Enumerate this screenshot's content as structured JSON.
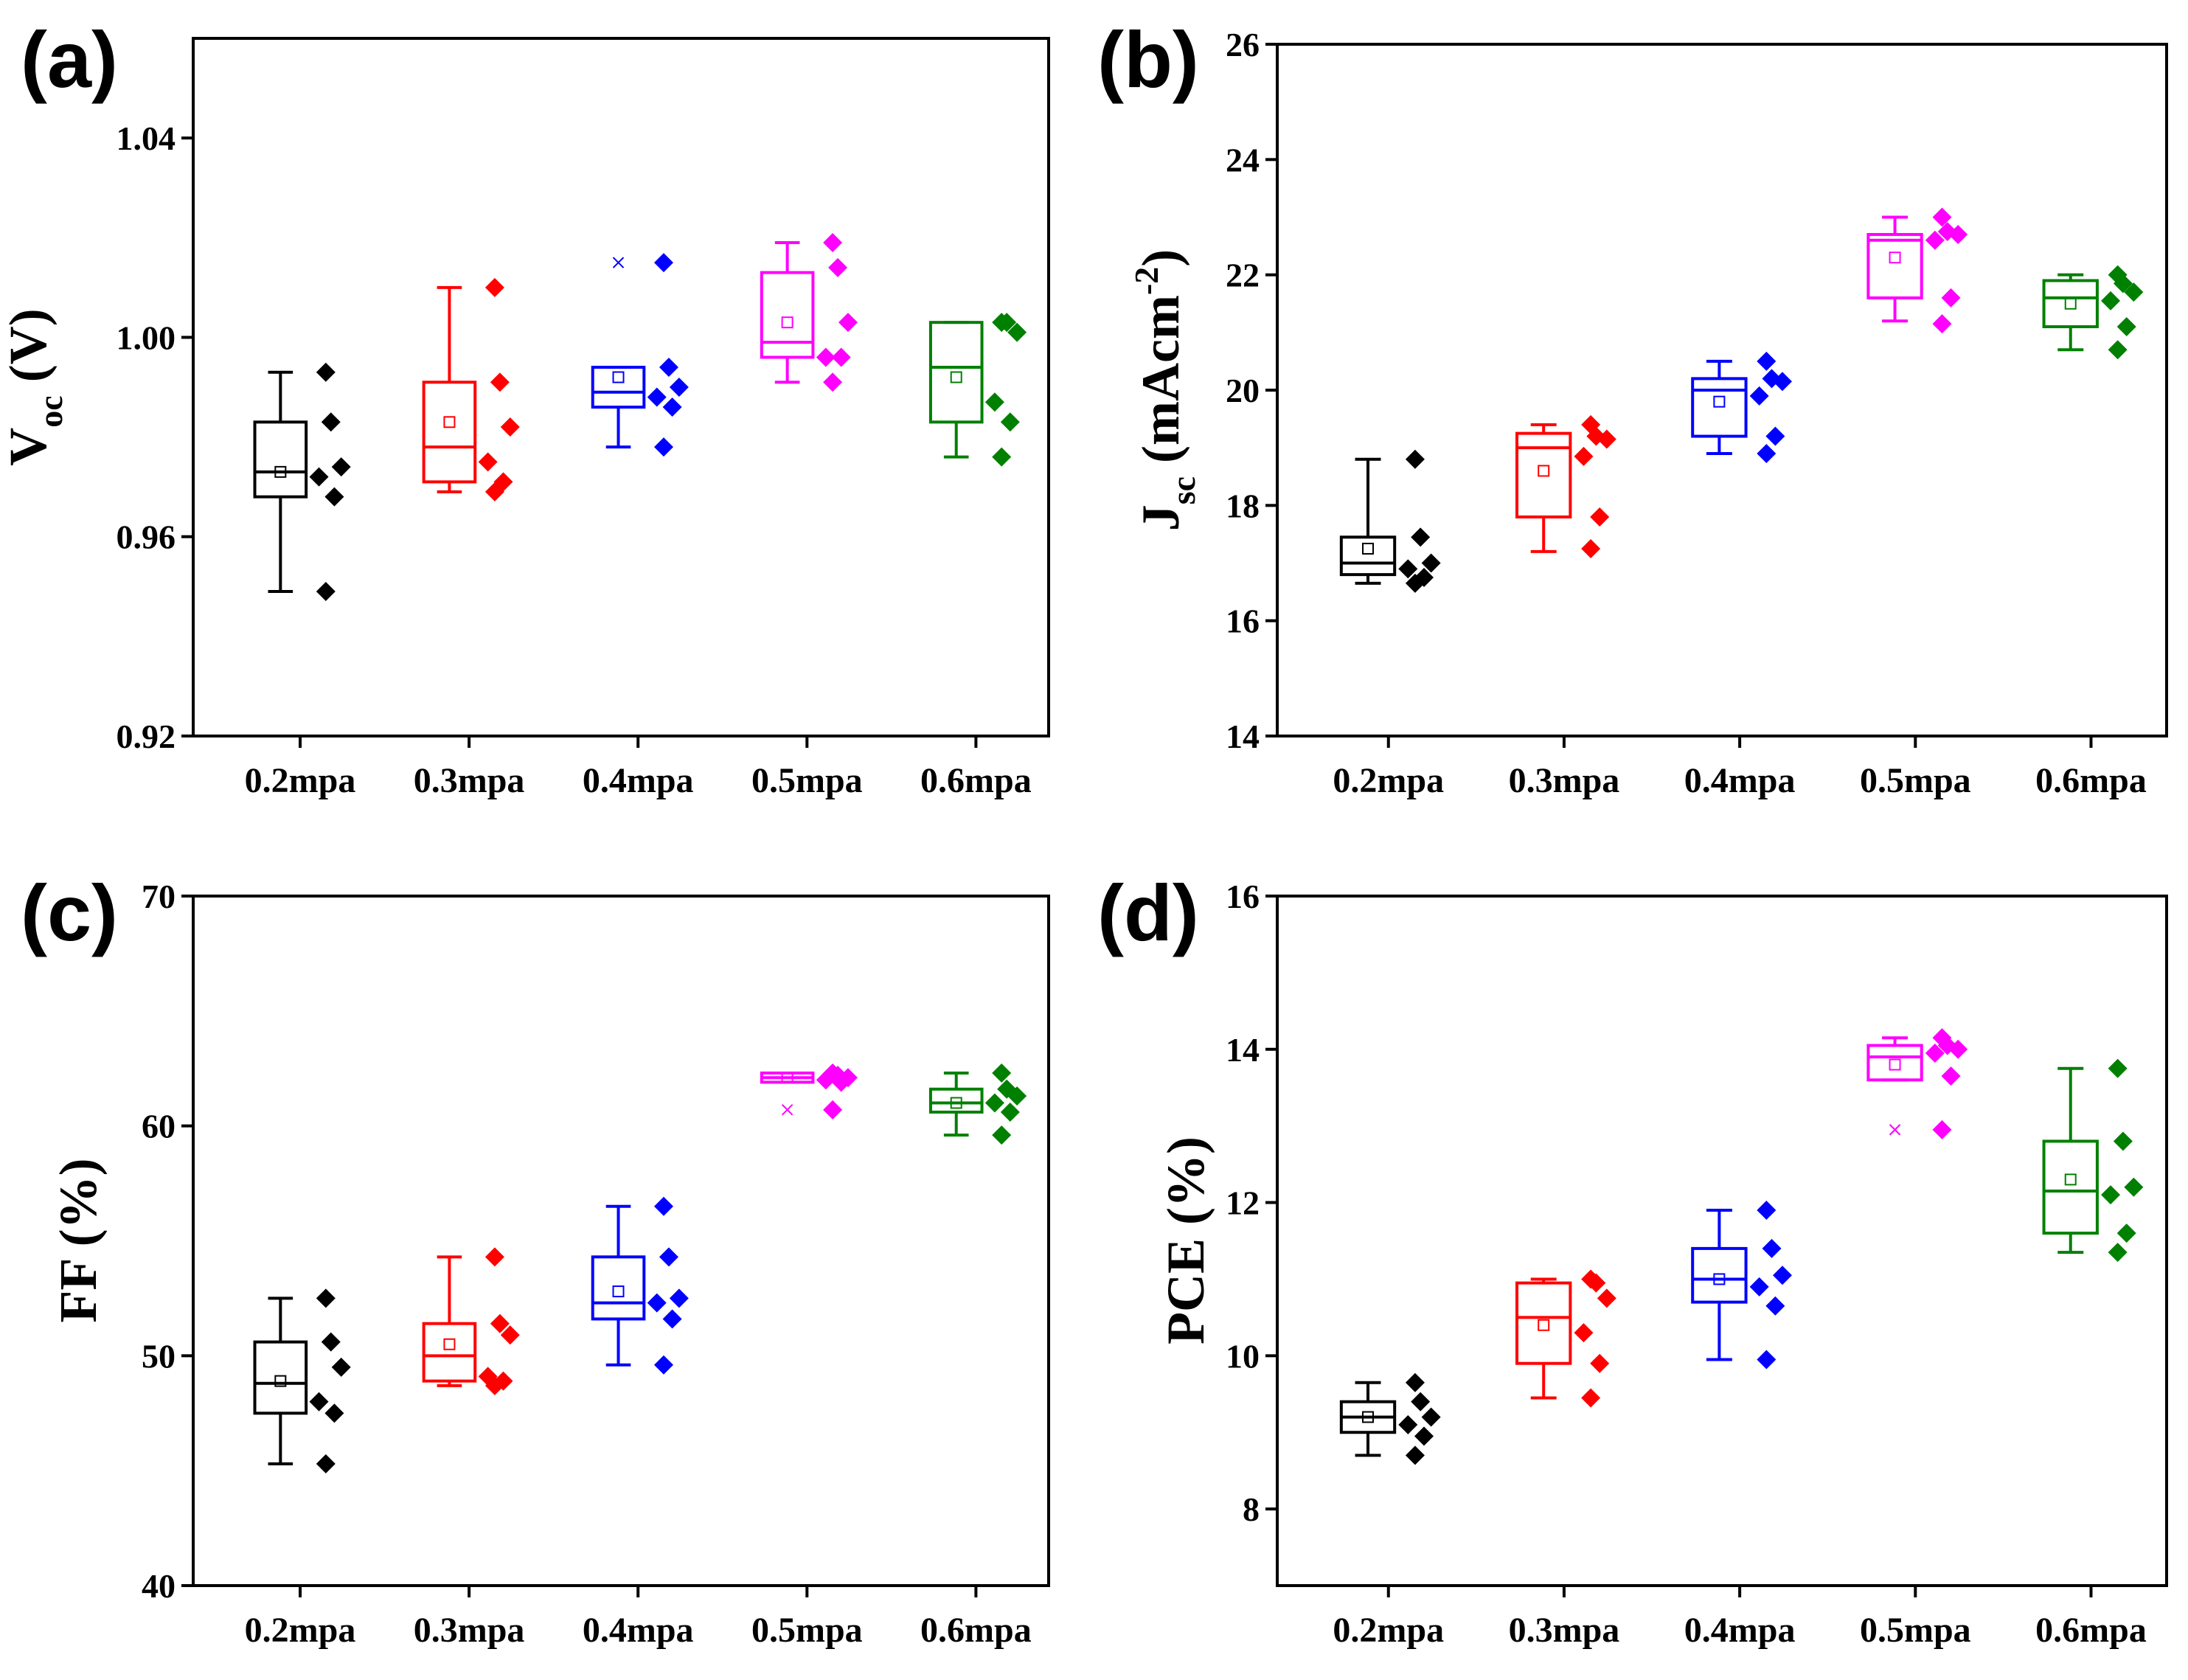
{
  "figure": {
    "categories": [
      "0.2mpa",
      "0.3mpa",
      "0.4mpa",
      "0.5mpa",
      "0.6mpa"
    ],
    "colors": [
      "#000000",
      "#ff0000",
      "#0000ff",
      "#ff00ff",
      "#008000"
    ]
  },
  "chart_data": [
    {
      "panel": "(a)",
      "type": "box",
      "title": "",
      "xlabel": "",
      "ylabel": {
        "main": "V",
        "sub": "oc",
        "rest": " (V)"
      },
      "ylim": [
        0.92,
        1.06
      ],
      "yticks": [
        0.92,
        0.96,
        1.0,
        1.04
      ],
      "ytick_labels": [
        "0.92",
        "0.96",
        "1.00",
        "1.04"
      ],
      "categories": [
        "0.2mpa",
        "0.3mpa",
        "0.4mpa",
        "0.5mpa",
        "0.6mpa"
      ],
      "boxes": [
        {
          "q1": 0.968,
          "median": 0.973,
          "q3": 0.983,
          "whisker_low": 0.949,
          "whisker_high": 0.993,
          "mean": 0.973,
          "outliers": []
        },
        {
          "q1": 0.971,
          "median": 0.978,
          "q3": 0.991,
          "whisker_low": 0.969,
          "whisker_high": 1.01,
          "mean": 0.983,
          "outliers": []
        },
        {
          "q1": 0.986,
          "median": 0.989,
          "q3": 0.994,
          "whisker_low": 0.978,
          "whisker_high": 0.994,
          "mean": 0.992,
          "outliers": [
            1.015
          ]
        },
        {
          "q1": 0.996,
          "median": 0.999,
          "q3": 1.013,
          "whisker_low": 0.991,
          "whisker_high": 1.019,
          "mean": 1.003,
          "outliers": []
        },
        {
          "q1": 0.983,
          "median": 0.994,
          "q3": 1.003,
          "whisker_low": 0.976,
          "whisker_high": 1.003,
          "mean": 0.992,
          "outliers": []
        }
      ],
      "points": [
        [
          0.993,
          0.983,
          0.974,
          0.972,
          0.968,
          0.949
        ],
        [
          1.01,
          0.991,
          0.982,
          0.975,
          0.971,
          0.969
        ],
        [
          1.015,
          0.994,
          0.99,
          0.988,
          0.986,
          0.978
        ],
        [
          1.019,
          1.014,
          1.003,
          0.996,
          0.996,
          0.991
        ],
        [
          1.003,
          1.003,
          1.001,
          0.987,
          0.983,
          0.976
        ]
      ]
    },
    {
      "panel": "(b)",
      "type": "box",
      "title": "",
      "xlabel": "",
      "ylabel": {
        "main": "J",
        "sub": "sc",
        "rest": " (mAcm",
        "sup": "-2",
        "close": ")"
      },
      "ylim": [
        14,
        26
      ],
      "yticks": [
        14,
        16,
        18,
        20,
        22,
        24,
        26
      ],
      "ytick_labels": [
        "14",
        "16",
        "18",
        "20",
        "22",
        "24",
        "26"
      ],
      "categories": [
        "0.2mpa",
        "0.3mpa",
        "0.4mpa",
        "0.5mpa",
        "0.6mpa"
      ],
      "boxes": [
        {
          "q1": 16.8,
          "median": 17.0,
          "q3": 17.45,
          "whisker_low": 16.65,
          "whisker_high": 18.8,
          "mean": 17.25,
          "outliers": []
        },
        {
          "q1": 17.8,
          "median": 19.0,
          "q3": 19.25,
          "whisker_low": 17.2,
          "whisker_high": 19.4,
          "mean": 18.6,
          "outliers": []
        },
        {
          "q1": 19.2,
          "median": 20.0,
          "q3": 20.2,
          "whisker_low": 18.9,
          "whisker_high": 20.5,
          "mean": 19.8,
          "outliers": []
        },
        {
          "q1": 21.6,
          "median": 22.6,
          "q3": 22.7,
          "whisker_low": 21.2,
          "whisker_high": 23.0,
          "mean": 22.3,
          "outliers": []
        },
        {
          "q1": 21.1,
          "median": 21.6,
          "q3": 21.9,
          "whisker_low": 20.7,
          "whisker_high": 22.0,
          "mean": 21.5,
          "outliers": []
        }
      ],
      "points": [
        [
          18.8,
          17.45,
          17.0,
          16.9,
          16.75,
          16.65
        ],
        [
          19.4,
          19.2,
          19.15,
          18.85,
          17.8,
          17.25
        ],
        [
          20.5,
          20.2,
          20.15,
          19.9,
          19.2,
          18.9
        ],
        [
          23.0,
          22.75,
          22.7,
          22.6,
          21.6,
          21.15
        ],
        [
          22.0,
          21.85,
          21.7,
          21.55,
          21.1,
          20.7
        ]
      ]
    },
    {
      "panel": "(c)",
      "type": "box",
      "title": "",
      "xlabel": "",
      "ylabel": {
        "main": "FF (%)"
      },
      "ylim": [
        40,
        70
      ],
      "yticks": [
        40,
        50,
        60,
        70
      ],
      "ytick_labels": [
        "40",
        "50",
        "60",
        "70"
      ],
      "categories": [
        "0.2mpa",
        "0.3mpa",
        "0.4mpa",
        "0.5mpa",
        "0.6mpa"
      ],
      "boxes": [
        {
          "q1": 47.5,
          "median": 48.8,
          "q3": 50.6,
          "whisker_low": 45.3,
          "whisker_high": 52.5,
          "mean": 48.9,
          "outliers": []
        },
        {
          "q1": 48.9,
          "median": 50.0,
          "q3": 51.4,
          "whisker_low": 48.7,
          "whisker_high": 54.3,
          "mean": 50.5,
          "outliers": []
        },
        {
          "q1": 51.6,
          "median": 52.3,
          "q3": 54.3,
          "whisker_low": 49.6,
          "whisker_high": 56.5,
          "mean": 52.8,
          "outliers": []
        },
        {
          "q1": 61.9,
          "median": 62.1,
          "q3": 62.3,
          "whisker_low": 61.9,
          "whisker_high": 62.3,
          "mean": 62.1,
          "outliers": [
            60.7
          ]
        },
        {
          "q1": 60.6,
          "median": 61.0,
          "q3": 61.6,
          "whisker_low": 59.6,
          "whisker_high": 62.3,
          "mean": 61.0,
          "outliers": []
        }
      ],
      "points": [
        [
          52.5,
          50.6,
          49.5,
          48.0,
          47.5,
          45.3
        ],
        [
          54.3,
          51.4,
          50.9,
          49.1,
          48.9,
          48.7
        ],
        [
          56.5,
          54.3,
          52.5,
          52.3,
          51.6,
          49.6
        ],
        [
          62.3,
          62.2,
          62.1,
          62.0,
          61.9,
          60.7
        ],
        [
          62.3,
          61.6,
          61.3,
          61.0,
          60.6,
          59.6
        ]
      ]
    },
    {
      "panel": "(d)",
      "type": "box",
      "title": "",
      "xlabel": "",
      "ylabel": {
        "main": "PCE (%)"
      },
      "ylim": [
        7,
        16
      ],
      "yticks": [
        8,
        10,
        12,
        14,
        16
      ],
      "ytick_labels": [
        "8",
        "10",
        "12",
        "14",
        "16"
      ],
      "categories": [
        "0.2mpa",
        "0.3mpa",
        "0.4mpa",
        "0.5mpa",
        "0.6mpa"
      ],
      "boxes": [
        {
          "q1": 9.0,
          "median": 9.2,
          "q3": 9.4,
          "whisker_low": 8.7,
          "whisker_high": 9.65,
          "mean": 9.2,
          "outliers": []
        },
        {
          "q1": 9.9,
          "median": 10.5,
          "q3": 10.95,
          "whisker_low": 9.45,
          "whisker_high": 11.0,
          "mean": 10.4,
          "outliers": []
        },
        {
          "q1": 10.7,
          "median": 11.0,
          "q3": 11.4,
          "whisker_low": 9.95,
          "whisker_high": 11.9,
          "mean": 11.0,
          "outliers": []
        },
        {
          "q1": 13.6,
          "median": 13.9,
          "q3": 14.05,
          "whisker_low": 13.6,
          "whisker_high": 14.15,
          "mean": 13.8,
          "outliers": [
            12.95
          ]
        },
        {
          "q1": 11.6,
          "median": 12.15,
          "q3": 12.8,
          "whisker_low": 11.35,
          "whisker_high": 13.75,
          "mean": 12.3,
          "outliers": []
        }
      ],
      "points": [
        [
          9.65,
          9.4,
          9.2,
          9.1,
          8.95,
          8.7
        ],
        [
          11.0,
          10.95,
          10.75,
          10.3,
          9.9,
          9.45
        ],
        [
          11.9,
          11.4,
          11.05,
          10.9,
          10.65,
          9.95
        ],
        [
          14.15,
          14.05,
          14.0,
          13.95,
          13.65,
          12.95
        ],
        [
          13.75,
          12.8,
          12.2,
          12.1,
          11.6,
          11.35
        ]
      ]
    }
  ]
}
